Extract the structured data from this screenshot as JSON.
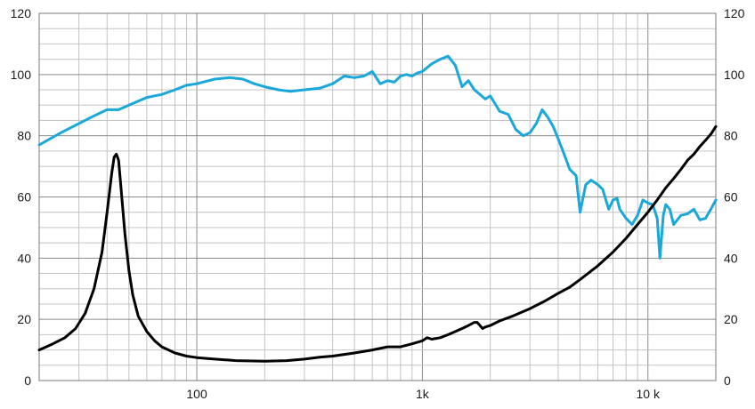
{
  "chart_data": {
    "type": "line",
    "title": "",
    "xlabel": "",
    "ylabel": "",
    "x_scale": "log",
    "xlim": [
      20,
      20000
    ],
    "ylim": [
      0,
      120
    ],
    "grid": true,
    "legend": "none",
    "x_tick_labels": [
      {
        "value": 100,
        "label": "100"
      },
      {
        "value": 1000,
        "label": "1k"
      },
      {
        "value": 10000,
        "label": "10 k"
      }
    ],
    "y_ticks_left": [
      0,
      20,
      40,
      60,
      80,
      100,
      120
    ],
    "y_ticks_right": [
      0,
      20,
      40,
      60,
      80,
      100,
      120
    ],
    "series": [
      {
        "color": "#1aa7d9",
        "x": [
          20,
          25,
          30,
          35,
          40,
          45,
          50,
          60,
          70,
          80,
          90,
          100,
          120,
          140,
          160,
          180,
          200,
          230,
          260,
          300,
          350,
          400,
          450,
          500,
          550,
          600,
          650,
          700,
          750,
          800,
          850,
          900,
          950,
          1000,
          1100,
          1200,
          1300,
          1400,
          1500,
          1600,
          1700,
          1800,
          1900,
          2000,
          2200,
          2400,
          2600,
          2800,
          3000,
          3200,
          3400,
          3600,
          3800,
          4000,
          4200,
          4500,
          4800,
          5000,
          5300,
          5600,
          6000,
          6300,
          6700,
          7000,
          7300,
          7500,
          8000,
          8500,
          9000,
          9500,
          10000,
          10500,
          11000,
          11300,
          11700,
          12000,
          12500,
          13000,
          14000,
          15000,
          16000,
          17000,
          18000,
          19000,
          20000
        ],
        "values": [
          77,
          81,
          84,
          86.5,
          88.5,
          88.5,
          90,
          92.5,
          93.5,
          95,
          96.5,
          97,
          98.5,
          99,
          98.5,
          97,
          96,
          95,
          94.5,
          95,
          95.5,
          97,
          99.5,
          99,
          99.5,
          101,
          97,
          98,
          97.5,
          99.5,
          100,
          99.5,
          100.5,
          101,
          103.5,
          105,
          106,
          103,
          96,
          98,
          95,
          93.5,
          92,
          93,
          88,
          87,
          82,
          80,
          81,
          84,
          88.5,
          86,
          83,
          79,
          75,
          69,
          67,
          55,
          64,
          65.5,
          64,
          62.5,
          56,
          59,
          59.5,
          56,
          53,
          51,
          54,
          59,
          58,
          57.5,
          53,
          40,
          54,
          57.5,
          56,
          51,
          54,
          54.5,
          56,
          52.5,
          53,
          56,
          59
        ]
      },
      {
        "color": "#000000",
        "x": [
          20,
          23,
          26,
          29,
          32,
          35,
          38,
          40,
          42,
          43,
          44,
          45,
          46,
          48,
          50,
          52,
          55,
          60,
          65,
          70,
          80,
          90,
          100,
          120,
          150,
          200,
          250,
          300,
          350,
          400,
          500,
          600,
          700,
          800,
          900,
          1000,
          1050,
          1100,
          1200,
          1300,
          1400,
          1500,
          1600,
          1700,
          1750,
          1800,
          1850,
          1900,
          2000,
          2200,
          2500,
          3000,
          3500,
          4000,
          4500,
          5000,
          6000,
          7000,
          8000,
          9000,
          10000,
          11000,
          12000,
          13000,
          14000,
          15000,
          16000,
          17000,
          18000,
          19000,
          20000
        ],
        "values": [
          10,
          12,
          14,
          17,
          22,
          30,
          42,
          55,
          68,
          73,
          74,
          72,
          64,
          48,
          36,
          28,
          21,
          16,
          13,
          11,
          9,
          8,
          7.5,
          7,
          6.5,
          6.3,
          6.5,
          7,
          7.6,
          8,
          9,
          10,
          11,
          11,
          12,
          13,
          14,
          13.5,
          14,
          15,
          16,
          17,
          18,
          19,
          19,
          18,
          17,
          17.5,
          18,
          19.5,
          21,
          23.5,
          26,
          28.5,
          30.5,
          33,
          37.5,
          42,
          46.5,
          51,
          55,
          59,
          63,
          66,
          69,
          72,
          74,
          76.5,
          78.5,
          80.5,
          83
        ]
      }
    ]
  }
}
